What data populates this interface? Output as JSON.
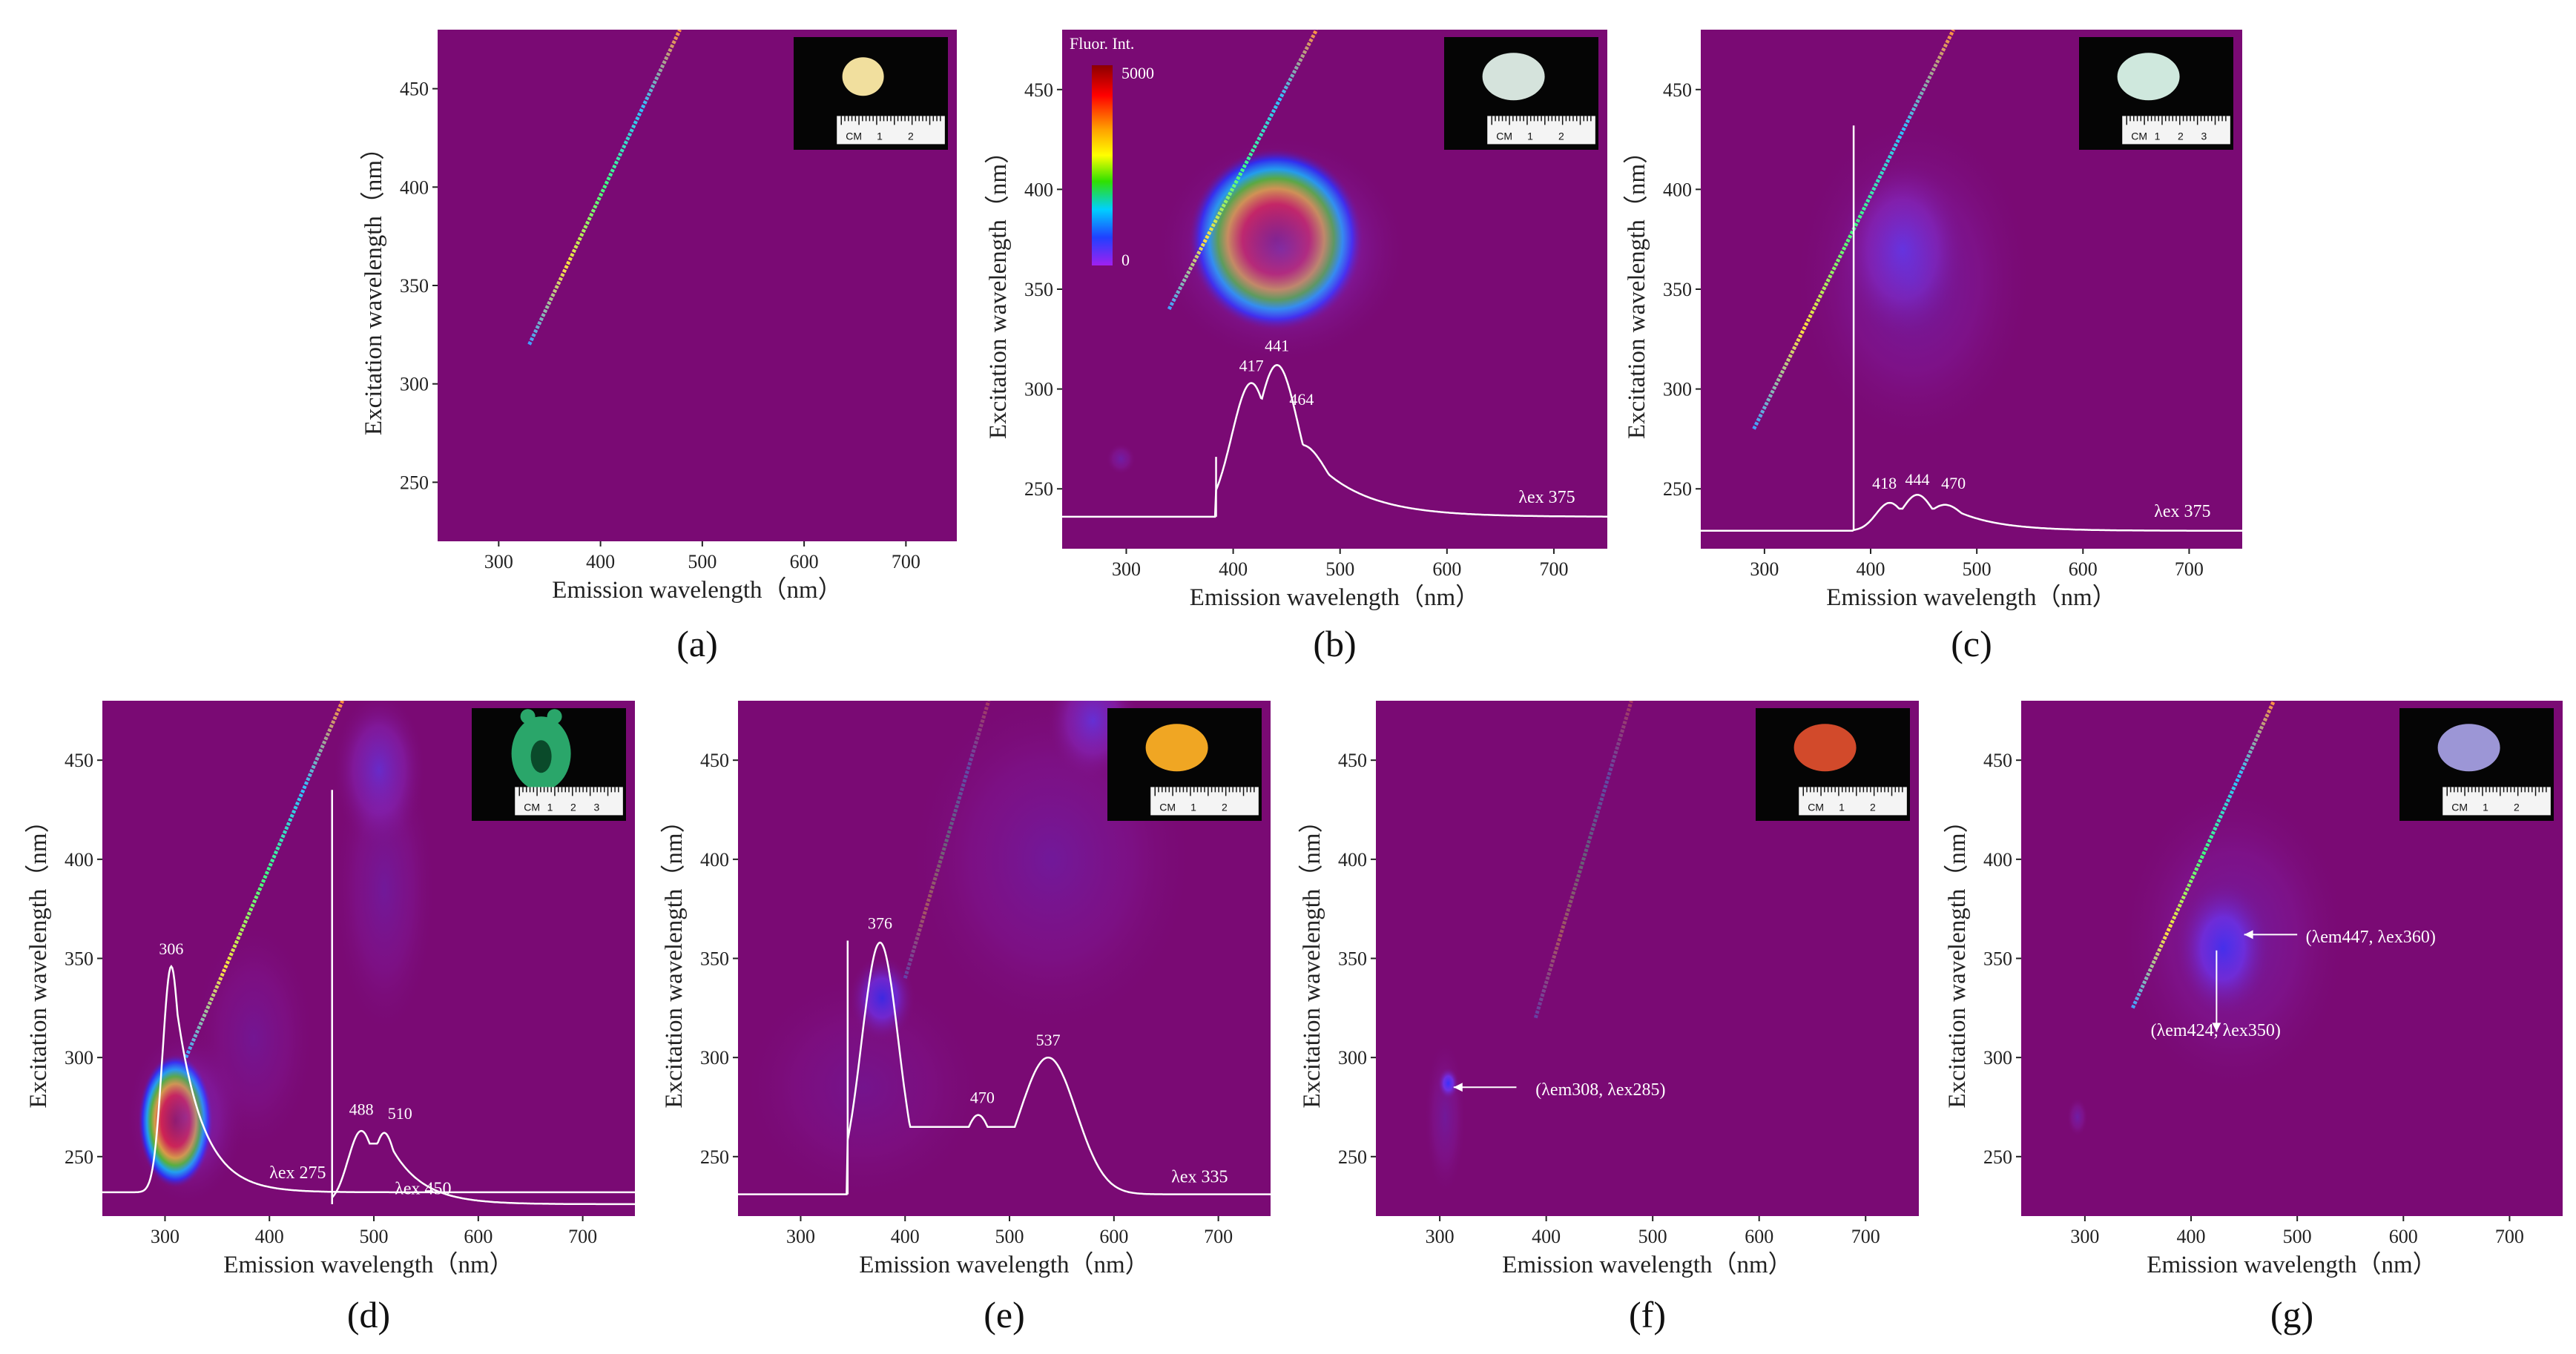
{
  "chart_data": [
    {
      "id": "a",
      "type": "heatmap",
      "panel_label": "(a)",
      "xlabel": "Emission wavelength（nm）",
      "ylabel": "Excitation wavelength（nm）",
      "xlim": [
        240,
        750
      ],
      "ylim": [
        220,
        480
      ],
      "xticks": [
        "300",
        "400",
        "500",
        "600",
        "700"
      ],
      "yticks": [
        "250",
        "300",
        "350",
        "400",
        "450"
      ],
      "bg": "#7a0a74",
      "scatter_line": [
        [
          330,
          320
        ],
        [
          478,
          480
        ]
      ],
      "blobs": [],
      "spectra": [],
      "peak_labels": [],
      "annotations": [],
      "inset": {
        "gem_color": "#f1df9e",
        "shape": "round",
        "ruler_labels": [
          "CM",
          "1",
          "2"
        ]
      }
    },
    {
      "id": "b",
      "type": "heatmap",
      "panel_label": "(b)",
      "xlabel": "Emission wavelength（nm）",
      "ylabel": "Excitation wavelength（nm）",
      "xlim": [
        240,
        750
      ],
      "ylim": [
        220,
        480
      ],
      "xticks": [
        "300",
        "400",
        "500",
        "600",
        "700"
      ],
      "yticks": [
        "250",
        "300",
        "350",
        "400",
        "450"
      ],
      "bg": "#7a0a74",
      "scatter_line": [
        [
          340,
          340
        ],
        [
          478,
          480
        ]
      ],
      "colorbar": {
        "title": "Fluor. Int.",
        "max_label": "5000",
        "min_label": "0"
      },
      "blobs": [
        {
          "cx": 440,
          "cy": 375,
          "rx": 82,
          "ry": 46,
          "intensity": 1.0,
          "core": true
        },
        {
          "cx": 445,
          "cy": 370,
          "rx": 120,
          "ry": 58,
          "intensity": 0.35,
          "core": false
        },
        {
          "cx": 295,
          "cy": 265,
          "rx": 14,
          "ry": 8,
          "intensity": 0.2,
          "core": false
        }
      ],
      "spectra": [
        {
          "name": "λex 375",
          "start": [
            240,
            236
          ],
          "end": [
            750,
            236
          ],
          "jump_x": 384,
          "peaks": [
            [
              417,
              303,
              26
            ],
            [
              441,
              312,
              28
            ],
            [
              464,
              272,
              35
            ]
          ],
          "decay": 48
        }
      ],
      "peak_labels": [
        {
          "text": "417",
          "x": 417,
          "y": 309
        },
        {
          "text": "441",
          "x": 441,
          "y": 319
        },
        {
          "text": "464",
          "x": 464,
          "y": 292
        }
      ],
      "annotations": [
        {
          "text": "λex 375",
          "x": 667,
          "y": 243
        }
      ],
      "inset": {
        "gem_color": "#d5e3dc",
        "shape": "oval",
        "ruler_labels": [
          "CM",
          "1",
          "2"
        ]
      }
    },
    {
      "id": "c",
      "type": "heatmap",
      "panel_label": "(c)",
      "xlabel": "Emission wavelength（nm）",
      "ylabel": "Excitation wavelength（nm）",
      "xlim": [
        240,
        750
      ],
      "ylim": [
        220,
        480
      ],
      "xticks": [
        "300",
        "400",
        "500",
        "600",
        "700"
      ],
      "yticks": [
        "250",
        "300",
        "350",
        "400",
        "450"
      ],
      "bg": "#7a0a74",
      "scatter_line": [
        [
          290,
          280
        ],
        [
          478,
          480
        ]
      ],
      "blobs": [
        {
          "cx": 430,
          "cy": 370,
          "rx": 60,
          "ry": 45,
          "intensity": 0.4,
          "core": false
        },
        {
          "cx": 440,
          "cy": 355,
          "rx": 115,
          "ry": 85,
          "intensity": 0.18,
          "core": false
        }
      ],
      "spectra": [
        {
          "name": "λex 375",
          "start": [
            240,
            229
          ],
          "end": [
            750,
            229
          ],
          "jump_x": 384,
          "spike_top": 432,
          "peaks": [
            [
              418,
              243,
              18
            ],
            [
              444,
              247,
              20
            ],
            [
              470,
              242,
              25
            ]
          ],
          "decay": 40
        }
      ],
      "peak_labels": [
        {
          "text": "418",
          "x": 413,
          "y": 250
        },
        {
          "text": "444",
          "x": 444,
          "y": 252
        },
        {
          "text": "470",
          "x": 478,
          "y": 250
        }
      ],
      "annotations": [
        {
          "text": "λex 375",
          "x": 667,
          "y": 236
        }
      ],
      "inset": {
        "gem_color": "#cfe8dd",
        "shape": "oval",
        "ruler_labels": [
          "CM",
          "1",
          "2",
          "3"
        ]
      }
    },
    {
      "id": "d",
      "type": "heatmap",
      "panel_label": "(d)",
      "xlabel": "Emission wavelength（nm）",
      "ylabel": "Excitation wavelength（nm）",
      "xlim": [
        240,
        750
      ],
      "ylim": [
        220,
        480
      ],
      "xticks": [
        "300",
        "400",
        "500",
        "600",
        "700"
      ],
      "yticks": [
        "250",
        "300",
        "350",
        "400",
        "450"
      ],
      "bg": "#7a0a74",
      "scatter_line": [
        [
          320,
          300
        ],
        [
          470,
          480
        ]
      ],
      "blobs": [
        {
          "cx": 310,
          "cy": 268,
          "rx": 36,
          "ry": 34,
          "intensity": 1.0,
          "core": true
        },
        {
          "cx": 320,
          "cy": 270,
          "rx": 58,
          "ry": 45,
          "intensity": 0.3,
          "core": false
        },
        {
          "cx": 505,
          "cy": 445,
          "rx": 45,
          "ry": 40,
          "intensity": 0.35,
          "core": false
        },
        {
          "cx": 510,
          "cy": 385,
          "rx": 50,
          "ry": 75,
          "intensity": 0.15,
          "core": false
        },
        {
          "cx": 385,
          "cy": 310,
          "rx": 60,
          "ry": 60,
          "intensity": 0.12,
          "core": false
        }
      ],
      "spectra": [
        {
          "name": "λex 275",
          "start": [
            240,
            232
          ],
          "end": [
            750,
            232
          ],
          "jump_x": 0,
          "peaks": [
            [
              306,
              346,
              12
            ]
          ],
          "decay": 25
        },
        {
          "name": "λex 450",
          "start": [
            460,
            226
          ],
          "end": [
            750,
            226
          ],
          "jump_x": 460,
          "spike_top": 435,
          "peaks": [
            [
              488,
              263,
              18
            ],
            [
              510,
              262,
              16
            ]
          ],
          "decay": 30
        }
      ],
      "peak_labels": [
        {
          "text": "306",
          "x": 306,
          "y": 352
        },
        {
          "text": "488",
          "x": 488,
          "y": 271
        },
        {
          "text": "510",
          "x": 525,
          "y": 269
        }
      ],
      "annotations": [
        {
          "text": "λex 275",
          "x": 400,
          "y": 239
        },
        {
          "text": "λex 450",
          "x": 520,
          "y": 231
        }
      ],
      "inset": {
        "gem_color": "#2aa66a",
        "shape": "carving",
        "ruler_labels": [
          "CM",
          "1",
          "2",
          "3"
        ]
      }
    },
    {
      "id": "e",
      "type": "heatmap",
      "panel_label": "(e)",
      "xlabel": "Emission wavelength（nm）",
      "ylabel": "Excitation wavelength（nm）",
      "xlim": [
        240,
        750
      ],
      "ylim": [
        220,
        480
      ],
      "xticks": [
        "300",
        "400",
        "500",
        "600",
        "700"
      ],
      "yticks": [
        "250",
        "300",
        "350",
        "400",
        "450"
      ],
      "bg": "#7a0a74",
      "scatter_line": [
        [
          400,
          340
        ],
        [
          480,
          480
        ]
      ],
      "blobs": [
        {
          "cx": 378,
          "cy": 330,
          "rx": 32,
          "ry": 22,
          "intensity": 0.45,
          "core": false
        },
        {
          "cx": 580,
          "cy": 470,
          "rx": 45,
          "ry": 30,
          "intensity": 0.4,
          "core": false
        },
        {
          "cx": 540,
          "cy": 400,
          "rx": 140,
          "ry": 90,
          "intensity": 0.15,
          "core": false
        },
        {
          "cx": 360,
          "cy": 285,
          "rx": 120,
          "ry": 60,
          "intensity": 0.1,
          "core": false
        }
      ],
      "spectra": [
        {
          "name": "λex 335",
          "start": [
            240,
            231
          ],
          "end": [
            750,
            231
          ],
          "jump_x": 345,
          "spike_top": 359,
          "peaks": [
            [
              376,
              358,
              25
            ],
            [
              470,
              271,
              22
            ],
            [
              537,
              300,
              38
            ]
          ],
          "decay": 0
        }
      ],
      "peak_labels": [
        {
          "text": "376",
          "x": 376,
          "y": 365
        },
        {
          "text": "470",
          "x": 474,
          "y": 277
        },
        {
          "text": "537",
          "x": 537,
          "y": 306
        }
      ],
      "annotations": [
        {
          "text": "λex 335",
          "x": 655,
          "y": 237
        }
      ],
      "inset": {
        "gem_color": "#f0a623",
        "shape": "oval",
        "ruler_labels": [
          "CM",
          "1",
          "2"
        ]
      }
    },
    {
      "id": "f",
      "type": "heatmap",
      "panel_label": "(f)",
      "xlabel": "Emission wavelength（nm）",
      "ylabel": "Excitation wavelength（nm）",
      "xlim": [
        240,
        750
      ],
      "ylim": [
        220,
        480
      ],
      "xticks": [
        "300",
        "400",
        "500",
        "600",
        "700"
      ],
      "yticks": [
        "250",
        "300",
        "350",
        "400",
        "450"
      ],
      "bg": "#7a0a74",
      "scatter_line": [
        [
          390,
          320
        ],
        [
          480,
          480
        ]
      ],
      "blobs": [
        {
          "cx": 308,
          "cy": 287,
          "rx": 10,
          "ry": 8,
          "intensity": 0.7,
          "core": false
        },
        {
          "cx": 305,
          "cy": 270,
          "rx": 20,
          "ry": 40,
          "intensity": 0.15,
          "core": false
        }
      ],
      "spectra": [],
      "peak_labels": [],
      "annotations": [
        {
          "text": "(λem308, λex285)",
          "x": 390,
          "y": 281,
          "arrow_from": [
            372,
            285
          ],
          "arrow_to": [
            313,
            285
          ]
        }
      ],
      "inset": {
        "gem_color": "#d24a2b",
        "shape": "oval",
        "ruler_labels": [
          "CM",
          "1",
          "2"
        ]
      }
    },
    {
      "id": "g",
      "type": "heatmap",
      "panel_label": "(g)",
      "xlabel": "Emission wavelength（nm）",
      "ylabel": "Excitation wavelength（nm）",
      "xlim": [
        240,
        750
      ],
      "ylim": [
        220,
        480
      ],
      "xticks": [
        "300",
        "400",
        "500",
        "600",
        "700"
      ],
      "yticks": [
        "250",
        "300",
        "350",
        "400",
        "450"
      ],
      "bg": "#7a0a74",
      "scatter_line": [
        [
          345,
          325
        ],
        [
          478,
          480
        ]
      ],
      "blobs": [
        {
          "cx": 430,
          "cy": 355,
          "rx": 45,
          "ry": 35,
          "intensity": 0.45,
          "core": false
        },
        {
          "cx": 440,
          "cy": 360,
          "rx": 110,
          "ry": 80,
          "intensity": 0.18,
          "core": false
        },
        {
          "cx": 293,
          "cy": 270,
          "rx": 10,
          "ry": 10,
          "intensity": 0.2,
          "core": false
        }
      ],
      "spectra": [],
      "peak_labels": [],
      "annotations": [
        {
          "text": "(λem447, λex360)",
          "x": 508,
          "y": 358,
          "arrow_from": [
            500,
            362
          ],
          "arrow_to": [
            450,
            362
          ]
        },
        {
          "text": "(λem424, λex350)",
          "x": 362,
          "y": 311,
          "arrow_from": [
            424,
            354
          ],
          "arrow_to": [
            424,
            313
          ]
        }
      ],
      "inset": {
        "gem_color": "#9c96d6",
        "shape": "oval",
        "ruler_labels": [
          "CM",
          "1",
          "2"
        ]
      }
    }
  ]
}
